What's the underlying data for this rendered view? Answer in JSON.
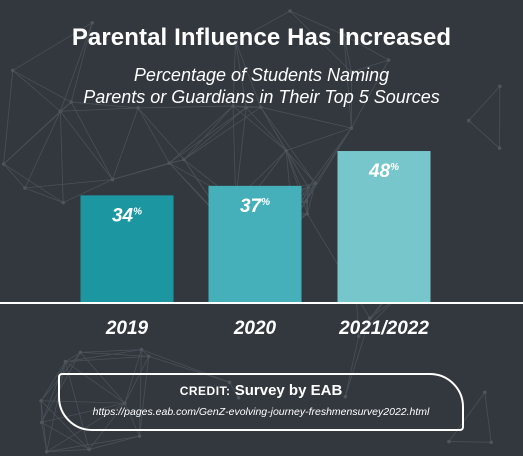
{
  "title": "Parental Influence Has Increased",
  "subtitle_line1": "Percentage of Students Naming",
  "subtitle_line2": "Parents or Guardians in Their Top 5 Sources",
  "credit": {
    "label": "CREDIT:",
    "source": "Survey by EAB",
    "url": "https://pages.eab.com/GenZ-evolving-journey-freshmensurvey2022.html"
  },
  "chart_data": {
    "type": "bar",
    "categories": [
      "2019",
      "2020",
      "2021/2022"
    ],
    "values": [
      34,
      37,
      48
    ],
    "value_suffix": "%",
    "colors": [
      "#1c97a2",
      "#46b0ba",
      "#77c6cc"
    ],
    "ylim": [
      0,
      50
    ],
    "grid": false,
    "legend": "none"
  }
}
